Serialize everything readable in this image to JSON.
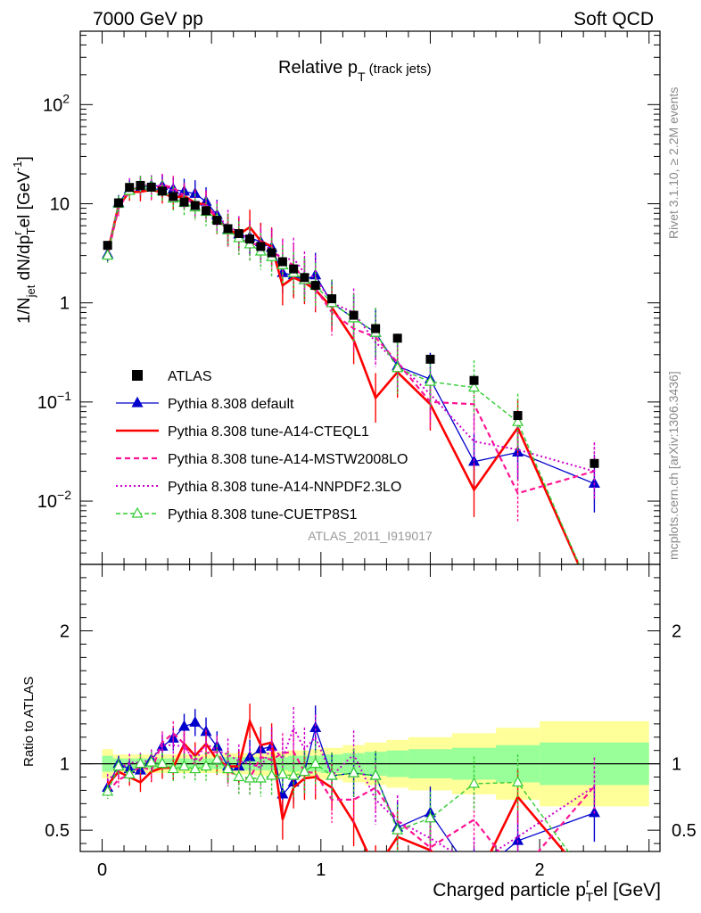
{
  "header": {
    "left": "7000 GeV pp",
    "right": "Soft QCD"
  },
  "side_labels": {
    "top": "Rivet 3.1.10, ≥ 2.2M events",
    "bottom": "mcplots.cern.ch [arXiv:1306.3436]"
  },
  "chart_data": {
    "type": "line",
    "title": "Relative p",
    "title_sub": "T",
    "title_note": " (track jets)",
    "analysis_id": "ATLAS_2011_I919017",
    "ylabel": "1/N_jet dN/dp_T^rel [GeV^-1]",
    "ylabel_parts": {
      "a": "1/N",
      "a_sub": "jet",
      "b": " dN/dp",
      "b_sub": "T",
      "b_sup": "r",
      "c": "el [GeV",
      "c_sup": "-1",
      "d": "]"
    },
    "ratio_ylabel": "Ratio to ATLAS",
    "xlabel_parts": {
      "a": "Charged particle p",
      "a_sub": "T",
      "a_sup": "r",
      "b": "el [GeV]"
    },
    "x_ticks": [
      "0",
      "1",
      "2"
    ],
    "main_ticks": [
      {
        "v": 0.01,
        "b": "10",
        "e": "−2"
      },
      {
        "v": 0.1,
        "b": "10",
        "e": "−1"
      },
      {
        "v": 1,
        "b": "1",
        "e": ""
      },
      {
        "v": 10,
        "b": "10",
        "e": ""
      },
      {
        "v": 100,
        "b": "10",
        "e": "2"
      }
    ],
    "ratio_ticks": [
      "0.5",
      "1",
      "2"
    ],
    "xlim": [
      -0.1,
      2.55
    ],
    "ylim": [
      0.0023,
      550
    ],
    "ratio_ylim": [
      0.34,
      2.5
    ],
    "x": [
      0.025,
      0.075,
      0.125,
      0.175,
      0.225,
      0.275,
      0.325,
      0.375,
      0.425,
      0.475,
      0.525,
      0.575,
      0.625,
      0.675,
      0.725,
      0.775,
      0.825,
      0.875,
      0.925,
      0.975,
      1.05,
      1.15,
      1.25,
      1.35,
      1.5,
      1.7,
      1.9,
      2.25
    ],
    "series": [
      {
        "name": "ATLAS",
        "values": [
          3.8,
          10.2,
          14.6,
          15.3,
          14.7,
          13.4,
          11.8,
          10.4,
          9.6,
          8.5,
          6.8,
          5.6,
          5.0,
          4.4,
          3.7,
          3.2,
          2.6,
          2.2,
          1.8,
          1.5,
          1.1,
          0.75,
          0.55,
          0.44,
          0.27,
          0.165,
          0.073,
          0.024
        ],
        "color": "#000000"
      },
      {
        "name": "Pythia 8.308 default",
        "values": [
          3.1,
          10.2,
          14.0,
          14.5,
          15.2,
          15.1,
          14.0,
          13.3,
          12.6,
          10.5,
          7.7,
          5.5,
          4.9,
          4.6,
          4.1,
          3.6,
          2.0,
          1.9,
          1.7,
          1.9,
          1.0,
          0.7,
          0.5,
          0.23,
          0.17,
          0.025,
          0.031,
          0.015
        ],
        "color": "#0000cc"
      },
      {
        "name": "Pythia 8.308 tune-A14-CTEQL1",
        "values": [
          3.2,
          9.6,
          13.1,
          13.2,
          13.8,
          13.0,
          11.5,
          12.0,
          10.2,
          9.8,
          7.0,
          5.5,
          4.9,
          5.8,
          4.2,
          3.7,
          1.5,
          1.8,
          1.6,
          1.35,
          0.9,
          0.42,
          0.11,
          0.2,
          0.095,
          0.013,
          0.055,
          0.0
        ],
        "color": "#ff0000"
      },
      {
        "name": "Pythia 8.308 tune-A14-MSTW2008LO",
        "values": [
          3.0,
          9.0,
          13.5,
          15.0,
          14.0,
          15.5,
          14.5,
          12.0,
          9.5,
          9.2,
          7.4,
          5.3,
          4.5,
          3.9,
          3.9,
          3.3,
          2.8,
          2.4,
          1.7,
          1.4,
          0.8,
          0.55,
          0.45,
          0.25,
          0.1,
          0.095,
          0.012,
          0.02
        ],
        "color": "#ff1493"
      },
      {
        "name": "Pythia 8.308 tune-A14-NNPDF2.3LO",
        "values": [
          3.3,
          9.8,
          14.8,
          15.4,
          15.2,
          15.3,
          13.5,
          11.8,
          9.8,
          9.8,
          7.5,
          6.0,
          5.1,
          4.4,
          3.6,
          3.6,
          2.7,
          2.8,
          2.0,
          1.8,
          1.0,
          0.8,
          0.4,
          0.25,
          0.12,
          0.04,
          0.033,
          0.02
        ],
        "color": "#cc00cc"
      },
      {
        "name": "Pythia 8.308 tune-CUETP8S1",
        "values": [
          3.0,
          10.0,
          13.5,
          15.3,
          14.8,
          13.4,
          11.3,
          10.2,
          9.2,
          8.3,
          7.0,
          5.4,
          4.5,
          3.9,
          3.3,
          2.9,
          2.4,
          2.0,
          1.7,
          1.5,
          1.0,
          0.7,
          0.5,
          0.22,
          0.16,
          0.14,
          0.063,
          0.0
        ],
        "color": "#33cc33"
      }
    ],
    "ratio_series": [
      {
        "name": "Pythia 8.308 default",
        "values": [
          0.82,
          1.0,
          0.96,
          0.95,
          1.03,
          1.13,
          1.19,
          1.28,
          1.31,
          1.24,
          1.13,
          0.98,
          0.98,
          1.05,
          1.11,
          1.13,
          0.77,
          0.86,
          0.94,
          1.27,
          0.91,
          0.93,
          0.91,
          0.52,
          0.63,
          0.15,
          0.42,
          0.63
        ],
        "color": "#0000cc"
      },
      {
        "name": "Pythia 8.308 tune-A14-CTEQL1",
        "values": [
          0.84,
          0.94,
          0.9,
          0.86,
          0.94,
          0.97,
          0.97,
          1.15,
          1.06,
          1.15,
          1.03,
          0.98,
          0.98,
          1.32,
          1.14,
          1.16,
          0.58,
          0.82,
          0.89,
          0.9,
          0.82,
          0.56,
          0.2,
          0.45,
          0.35,
          0.08,
          0.75,
          0.0
        ],
        "color": "#ff0000"
      },
      {
        "name": "Pythia 8.308 tune-A14-MSTW2008LO",
        "values": [
          0.79,
          0.88,
          0.92,
          0.98,
          0.95,
          1.16,
          1.23,
          1.15,
          0.99,
          1.08,
          1.09,
          0.95,
          0.9,
          0.89,
          1.05,
          1.03,
          1.08,
          1.09,
          0.94,
          0.93,
          0.73,
          0.73,
          0.82,
          0.57,
          0.37,
          0.58,
          0.16,
          0.83
        ],
        "color": "#ff1493"
      },
      {
        "name": "Pythia 8.308 tune-A14-NNPDF2.3LO",
        "values": [
          0.87,
          0.96,
          1.01,
          1.01,
          1.03,
          1.14,
          1.14,
          1.13,
          1.02,
          1.15,
          1.1,
          1.07,
          1.02,
          1.0,
          0.97,
          1.13,
          1.04,
          1.27,
          1.11,
          1.2,
          0.91,
          1.07,
          0.73,
          0.57,
          0.44,
          0.24,
          0.45,
          0.83
        ],
        "color": "#cc00cc"
      },
      {
        "name": "Pythia 8.308 tune-CUETP8S1",
        "values": [
          0.79,
          0.98,
          0.92,
          1.0,
          1.01,
          1.0,
          0.96,
          0.98,
          0.96,
          0.98,
          1.03,
          0.96,
          0.9,
          0.89,
          0.89,
          0.91,
          0.92,
          0.91,
          0.94,
          1.0,
          0.91,
          0.93,
          0.91,
          0.5,
          0.59,
          0.85,
          0.86,
          0.0
        ],
        "color": "#33cc33"
      }
    ],
    "ratio_band": {
      "edges": [
        0.0,
        0.05,
        0.1,
        0.15,
        0.2,
        0.25,
        0.3,
        0.35,
        0.4,
        0.45,
        0.5,
        0.55,
        0.6,
        0.65,
        0.7,
        0.75,
        0.8,
        0.85,
        0.9,
        0.95,
        1.0,
        1.1,
        1.2,
        1.3,
        1.4,
        1.6,
        1.8,
        2.0,
        2.5
      ],
      "inner": [
        0.06,
        0.04,
        0.04,
        0.04,
        0.04,
        0.04,
        0.04,
        0.04,
        0.04,
        0.04,
        0.04,
        0.05,
        0.05,
        0.05,
        0.05,
        0.05,
        0.05,
        0.06,
        0.06,
        0.06,
        0.07,
        0.08,
        0.09,
        0.1,
        0.11,
        0.12,
        0.14,
        0.16
      ],
      "outer": [
        0.11,
        0.07,
        0.07,
        0.07,
        0.07,
        0.07,
        0.07,
        0.07,
        0.07,
        0.07,
        0.07,
        0.08,
        0.08,
        0.08,
        0.09,
        0.09,
        0.09,
        0.1,
        0.1,
        0.11,
        0.12,
        0.14,
        0.16,
        0.18,
        0.2,
        0.23,
        0.27,
        0.32
      ]
    },
    "colors": {
      "band_outer": "#ffff99",
      "band_inner": "#99ff99"
    }
  }
}
